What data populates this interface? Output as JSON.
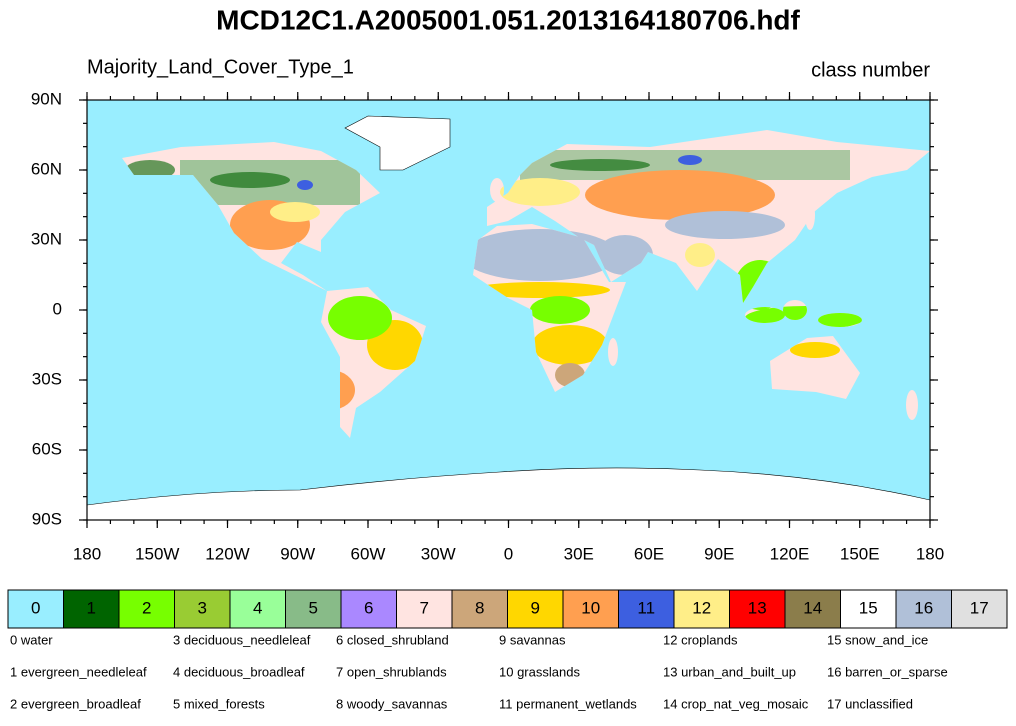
{
  "title": "MCD12C1.A2005001.051.2013164180706.hdf",
  "left_label": "Majority_Land_Cover_Type_1",
  "right_label": "class number",
  "lat_ticks": [
    "90N",
    "60N",
    "30N",
    "0",
    "30S",
    "60S",
    "90S"
  ],
  "lon_ticks": [
    "180",
    "150W",
    "120W",
    "90W",
    "60W",
    "30W",
    "0",
    "30E",
    "60E",
    "90E",
    "120E",
    "150E",
    "180"
  ],
  "colorbar": [
    {
      "label": "0",
      "color": "#99eeff"
    },
    {
      "label": "1",
      "color": "#006400"
    },
    {
      "label": "2",
      "color": "#77ff00"
    },
    {
      "label": "3",
      "color": "#99cc33"
    },
    {
      "label": "4",
      "color": "#99ff99"
    },
    {
      "label": "5",
      "color": "#88bb88"
    },
    {
      "label": "6",
      "color": "#aa88ff"
    },
    {
      "label": "7",
      "color": "#ffe4e1"
    },
    {
      "label": "8",
      "color": "#cca67a"
    },
    {
      "label": "9",
      "color": "#ffd700"
    },
    {
      "label": "10",
      "color": "#ff9f50"
    },
    {
      "label": "11",
      "color": "#3d5fe0"
    },
    {
      "label": "12",
      "color": "#ffee88"
    },
    {
      "label": "13",
      "color": "#ff0000"
    },
    {
      "label": "14",
      "color": "#8b7d4b"
    },
    {
      "label": "15",
      "color": "#ffffff"
    },
    {
      "label": "16",
      "color": "#b0c0d8"
    },
    {
      "label": "17",
      "color": "#e0e0e0"
    }
  ],
  "legend": [
    "0 water",
    "1 evergreen_needleleaf",
    "2 evergreen_broadleaf",
    "3 deciduous_needleleaf",
    "4 deciduous_broadleaf",
    "5 mixed_forests",
    "6 closed_shrubland",
    "7 open_shrublands",
    "8 woody_savannas",
    "9 savannas",
    "10 grasslands",
    "11 permanent_wetlands",
    "12 croplands",
    "13 urban_and_built_up",
    "14 crop_nat_veg_mosaic",
    "15 snow_and_ice",
    "16 barren_or_sparse",
    "17 unclassified"
  ]
}
